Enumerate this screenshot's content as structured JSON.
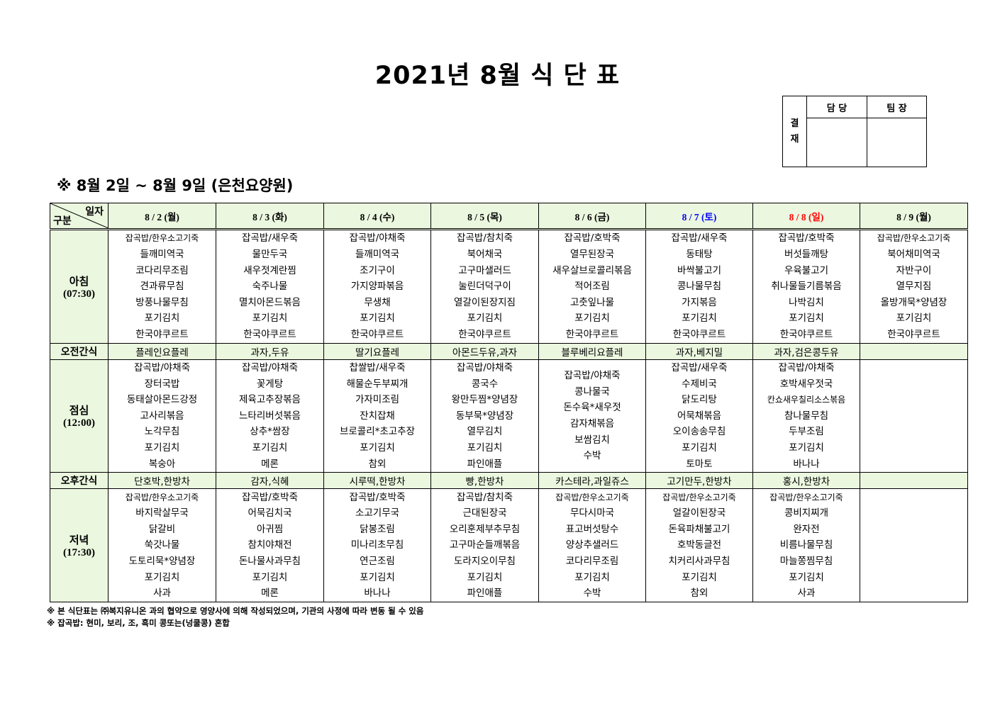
{
  "title": "2021년 8월 식 단 표",
  "approval": {
    "side_label": "결\n재",
    "col1": "담 당",
    "col2": "팀 장"
  },
  "subtitle": "※ 8월 2일 ~ 8월 9일 (은천요양원)",
  "corner": {
    "top": "일자",
    "bottom": "구분"
  },
  "rows": {
    "breakfast": {
      "name": "아침",
      "time": "(07:30)"
    },
    "snack_am": {
      "name": "오전간식"
    },
    "lunch": {
      "name": "점심",
      "time": "(12:00)"
    },
    "snack_pm": {
      "name": "오후간식"
    },
    "dinner": {
      "name": "저녁",
      "time": "(17:30)"
    }
  },
  "colors": {
    "header_bg": "#ebf7df",
    "saturday": "#0000ff",
    "sunday": "#ff0000"
  },
  "days": [
    {
      "label": "8 / 2 (월)",
      "color": "#000000",
      "breakfast": [
        "잡곡밥/한우소고기죽",
        "들깨미역국",
        "코다리무조림",
        "견과류무침",
        "방풍나물무침",
        "포기김치",
        "한국야쿠르트"
      ],
      "snack_am": "플레인요플레",
      "lunch": [
        "잡곡밥/야채죽",
        "장터국밥",
        "동태살아몬드강정",
        "고사리볶음",
        "노각무침",
        "포기김치",
        "복숭아"
      ],
      "snack_pm": "단호박,한방차",
      "dinner": [
        "잡곡밥/한우소고기죽",
        "바지락살무국",
        "닭갈비",
        "쑥갓나물",
        "도토리묵*양념장",
        "포기김치",
        "사과"
      ]
    },
    {
      "label": "8 / 3 (화)",
      "color": "#000000",
      "breakfast": [
        "잡곡밥/새우죽",
        "물만두국",
        "새우젓계란찜",
        "숙주나물",
        "멸치아몬드볶음",
        "포기김치",
        "한국야쿠르트"
      ],
      "snack_am": "과자,두유",
      "lunch": [
        "잡곡밥/야채죽",
        "꽃게탕",
        "제육고추장볶음",
        "느타리버섯볶음",
        "상추*쌈장",
        "포기김치",
        "메론"
      ],
      "snack_pm": "감자,식혜",
      "dinner": [
        "잡곡밥/호박죽",
        "어묵김치국",
        "아귀찜",
        "참치야채전",
        "돈나물사과무침",
        "포기김치",
        "메론"
      ]
    },
    {
      "label": "8 / 4 (수)",
      "color": "#000000",
      "breakfast": [
        "잡곡밥/야채죽",
        "들깨미역국",
        "조기구이",
        "가지양파볶음",
        "무생채",
        "포기김치",
        "한국야쿠르트"
      ],
      "snack_am": "딸기요플레",
      "lunch": [
        "찹쌀밥/새우죽",
        "해물순두부찌개",
        "가자미조림",
        "잔치잡채",
        "브로콜리*초고추장",
        "포기김치",
        "참외"
      ],
      "snack_pm": "시루떡,한방차",
      "dinner": [
        "잡곡밥/호박죽",
        "소고기무국",
        "닭봉조림",
        "미나리초무침",
        "연근조림",
        "포기김치",
        "바나나"
      ]
    },
    {
      "label": "8 / 5 (목)",
      "color": "#000000",
      "breakfast": [
        "잡곡밥/참치죽",
        "북어채국",
        "고구마샐러드",
        "눌린더덕구이",
        "열갈이된장지짐",
        "포기김치",
        "한국야쿠르트"
      ],
      "snack_am": "아몬드두유,과자",
      "lunch": [
        "잡곡밥/야채죽",
        "콩국수",
        "왕만두찜*양념장",
        "동부묵*양념장",
        "열무김치",
        "포기김치",
        "파인애플"
      ],
      "snack_pm": "빵,한방차",
      "dinner": [
        "잡곡밥/참치죽",
        "근대된장국",
        "오리훈제부추무침",
        "고구마순들깨볶음",
        "도라지오이무침",
        "포기김치",
        "파인애플"
      ]
    },
    {
      "label": "8 / 6 (금)",
      "color": "#000000",
      "breakfast": [
        "잡곡밥/호박죽",
        "열무된장국",
        "새우살브로콜리볶음",
        "적어조림",
        "고춧잎나물",
        "포기김치",
        "한국야쿠르트"
      ],
      "snack_am": "블루베리요플레",
      "lunch": [
        "잡곡밥/야채죽",
        "콩나물국",
        "돈수육*새우젓",
        "감자채볶음",
        "보쌈김치",
        "수박"
      ],
      "snack_pm": "카스테라,과일쥬스",
      "dinner": [
        "잡곡밥/한우소고기죽",
        "무다시마국",
        "표고버섯탕수",
        "양상추샐러드",
        "코다리무조림",
        "포기김치",
        "수박"
      ]
    },
    {
      "label": "8 / 7 (토)",
      "color": "#0000ff",
      "breakfast": [
        "잡곡밥/새우죽",
        "동태탕",
        "바싹불고기",
        "콩나물무침",
        "가지볶음",
        "포기김치",
        "한국야쿠르트"
      ],
      "snack_am": "과자,베지밀",
      "lunch": [
        "잡곡밥/새우죽",
        "수제비국",
        "닭도리탕",
        "어묵채볶음",
        "오이송송무침",
        "포기김치",
        "토마토"
      ],
      "snack_pm": "고기만두,한방차",
      "dinner": [
        "잡곡밥/한우소고기죽",
        "얼갈이된장국",
        "돈육파채불고기",
        "호박동글전",
        "치커리사과무침",
        "포기김치",
        "참외"
      ]
    },
    {
      "label": "8 / 8 (일)",
      "color": "#ff0000",
      "breakfast": [
        "잡곡밥/호박죽",
        "버섯들깨탕",
        "우육불고기",
        "취나물들기름볶음",
        "나박김치",
        "포기김치",
        "한국야쿠르트"
      ],
      "snack_am": "과자,검은콩두유",
      "lunch": [
        "잡곡밥/야채죽",
        "호박새우젓국",
        "칸쇼새우칠리소스볶음",
        "참나물무침",
        "두부조림",
        "포기김치",
        "바나나"
      ],
      "snack_pm": "홍시,한방차",
      "dinner": [
        "잡곡밥/한우소고기죽",
        "콩비지찌개",
        "완자전",
        "비름나물무침",
        "마늘쫑찜무침",
        "포기김치",
        "사과"
      ]
    },
    {
      "label": "8 / 9 (월)",
      "color": "#000000",
      "breakfast": [
        "잡곡밥/한우소고기죽",
        "북어채미역국",
        "자반구이",
        "열무지짐",
        "올방개묵*양념장",
        "포기김치",
        "한국야쿠르트"
      ],
      "snack_am": "",
      "lunch": [],
      "snack_pm": "",
      "dinner": []
    }
  ],
  "notes": [
    "※ 본 식단표는 ㈜복지유니온 과의 협약으로 영양사에 의해 작성되었으며, 기관의 사정에 따라 변동 될 수 있음",
    "※ 잡곡밥: 현미, 보리, 조, 흑미 콩또는(넝쿨콩) 혼합"
  ]
}
